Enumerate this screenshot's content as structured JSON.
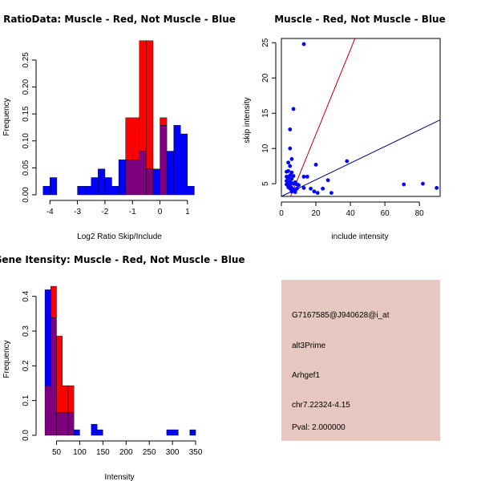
{
  "colors": {
    "red": "#ff0000",
    "blue": "#0000ff",
    "overlap": "#7f007f",
    "info_bg": "#e6c8c0",
    "pval": "#b00000",
    "red_line": "#c00000",
    "blue_line": "#000080"
  },
  "chart_data": [
    {
      "type": "bar",
      "title": "RatioData: Muscle - Red, Not Muscle - Blue",
      "xlabel": "Log2 Ratio Skip/Include",
      "ylabel": "Frequency",
      "xlim": [
        -4.3,
        1.5
      ],
      "ylim": [
        0,
        0.29
      ],
      "xticks": [
        -4,
        -3,
        -2,
        -1,
        0,
        1
      ],
      "xtick_labels": [
        "-4",
        "-3",
        "-2",
        "-1",
        "0",
        "1"
      ],
      "yticks": [
        0.0,
        0.05,
        0.1,
        0.15,
        0.2,
        0.25
      ],
      "ytick_labels": [
        "0.00",
        "0.05",
        "0.10",
        "0.15",
        "0.20",
        "0.25"
      ],
      "bin_width": 0.25,
      "series": [
        {
          "name": "Not Muscle",
          "color": "blue",
          "bins": [
            {
              "x0": -4.25,
              "v": 0.016
            },
            {
              "x0": -4.0,
              "v": 0.032
            },
            {
              "x0": -3.0,
              "v": 0.016
            },
            {
              "x0": -2.75,
              "v": 0.016
            },
            {
              "x0": -2.5,
              "v": 0.032
            },
            {
              "x0": -2.25,
              "v": 0.048
            },
            {
              "x0": -2.0,
              "v": 0.032
            },
            {
              "x0": -1.75,
              "v": 0.016
            },
            {
              "x0": -1.5,
              "v": 0.065
            },
            {
              "x0": -1.25,
              "v": 0.065
            },
            {
              "x0": -1.0,
              "v": 0.065
            },
            {
              "x0": -0.75,
              "v": 0.081
            },
            {
              "x0": -0.5,
              "v": 0.048
            },
            {
              "x0": -0.25,
              "v": 0.048
            },
            {
              "x0": 0.0,
              "v": 0.129
            },
            {
              "x0": 0.25,
              "v": 0.081
            },
            {
              "x0": 0.5,
              "v": 0.129
            },
            {
              "x0": 0.75,
              "v": 0.113
            },
            {
              "x0": 1.0,
              "v": 0.016
            }
          ]
        },
        {
          "name": "Muscle",
          "color": "red",
          "bins": [
            {
              "x0": -1.25,
              "v": 0.143
            },
            {
              "x0": -1.0,
              "v": 0.143
            },
            {
              "x0": -0.75,
              "v": 0.286
            },
            {
              "x0": -0.5,
              "v": 0.286
            },
            {
              "x0": 0.0,
              "v": 0.143
            }
          ]
        }
      ]
    },
    {
      "type": "scatter",
      "title": "Muscle - Red, Not Muscle - Blue",
      "xlabel": "include intensity",
      "ylabel": "skip intensity",
      "xlim": [
        0,
        92
      ],
      "ylim": [
        3.2,
        25.6
      ],
      "xticks": [
        0,
        20,
        40,
        60,
        80
      ],
      "xtick_labels": [
        "0",
        "20",
        "40",
        "60",
        "80"
      ],
      "yticks": [
        5,
        10,
        15,
        20,
        25
      ],
      "ytick_labels": [
        "5",
        "10",
        "15",
        "20",
        "25"
      ],
      "lines": [
        {
          "color": "red_line",
          "intercept": 0,
          "slope": 0.6
        },
        {
          "color": "blue_line",
          "intercept": 3.2,
          "slope": 0.118
        }
      ],
      "points": [
        {
          "x": 13,
          "y": 24.8
        },
        {
          "x": 7,
          "y": 15.6
        },
        {
          "x": 5,
          "y": 12.7
        },
        {
          "x": 5,
          "y": 10
        },
        {
          "x": 4,
          "y": 8
        },
        {
          "x": 6,
          "y": 8.5
        },
        {
          "x": 5,
          "y": 7.5
        },
        {
          "x": 38,
          "y": 8.2
        },
        {
          "x": 20,
          "y": 7.7
        },
        {
          "x": 3,
          "y": 6.7
        },
        {
          "x": 4,
          "y": 6.8
        },
        {
          "x": 6,
          "y": 6.6
        },
        {
          "x": 5,
          "y": 6.2
        },
        {
          "x": 3,
          "y": 6
        },
        {
          "x": 7,
          "y": 6.1
        },
        {
          "x": 4,
          "y": 5.8
        },
        {
          "x": 6,
          "y": 5.7
        },
        {
          "x": 13,
          "y": 6
        },
        {
          "x": 15,
          "y": 6
        },
        {
          "x": 3,
          "y": 5.4
        },
        {
          "x": 5,
          "y": 5.3
        },
        {
          "x": 6,
          "y": 5.1
        },
        {
          "x": 4,
          "y": 5
        },
        {
          "x": 3,
          "y": 4.9
        },
        {
          "x": 5,
          "y": 4.8
        },
        {
          "x": 7,
          "y": 5
        },
        {
          "x": 8,
          "y": 5.2
        },
        {
          "x": 9,
          "y": 4.9
        },
        {
          "x": 10,
          "y": 4.8
        },
        {
          "x": 27,
          "y": 5.5
        },
        {
          "x": 4,
          "y": 4.5
        },
        {
          "x": 5,
          "y": 4.3
        },
        {
          "x": 6,
          "y": 4.4
        },
        {
          "x": 7,
          "y": 4.2
        },
        {
          "x": 8,
          "y": 4.1
        },
        {
          "x": 9,
          "y": 4.3
        },
        {
          "x": 13,
          "y": 4.4
        },
        {
          "x": 17,
          "y": 4.3
        },
        {
          "x": 24,
          "y": 4.3
        },
        {
          "x": 6,
          "y": 3.9
        },
        {
          "x": 8,
          "y": 3.8
        },
        {
          "x": 19,
          "y": 3.9
        },
        {
          "x": 21,
          "y": 3.7
        },
        {
          "x": 29,
          "y": 3.7
        },
        {
          "x": 71,
          "y": 4.9
        },
        {
          "x": 82,
          "y": 5
        },
        {
          "x": 90,
          "y": 4.4
        }
      ]
    },
    {
      "type": "bar",
      "title": "Gene Itensity: Muscle - Red, Not Muscle - Blue",
      "xlabel": "Intensity",
      "ylabel": "Frequency",
      "xlim": [
        18,
        362
      ],
      "ylim": [
        0,
        0.45
      ],
      "xticks": [
        50,
        100,
        150,
        200,
        250,
        300,
        350
      ],
      "xtick_labels": [
        "50",
        "100",
        "150",
        "200",
        "250",
        "300",
        "350"
      ],
      "yticks": [
        0.0,
        0.1,
        0.2,
        0.3,
        0.4
      ],
      "ytick_labels": [
        "0.0",
        "0.1",
        "0.2",
        "0.3",
        "0.4"
      ],
      "bin_width": 12.5,
      "series": [
        {
          "name": "Not Muscle",
          "color": "blue",
          "bins": [
            {
              "x0": 25,
              "v": 0.419
            },
            {
              "x0": 37.5,
              "v": 0.339
            },
            {
              "x0": 50,
              "v": 0.065
            },
            {
              "x0": 62.5,
              "v": 0.065
            },
            {
              "x0": 75,
              "v": 0.065
            },
            {
              "x0": 87.5,
              "v": 0.016
            },
            {
              "x0": 125,
              "v": 0.032
            },
            {
              "x0": 137.5,
              "v": 0.016
            },
            {
              "x0": 287.5,
              "v": 0.016
            },
            {
              "x0": 300,
              "v": 0.016
            },
            {
              "x0": 337.5,
              "v": 0.016
            }
          ]
        },
        {
          "name": "Muscle",
          "color": "red",
          "bins": [
            {
              "x0": 25,
              "v": 0.143
            },
            {
              "x0": 37.5,
              "v": 0.429
            },
            {
              "x0": 50,
              "v": 0.286
            },
            {
              "x0": 62.5,
              "v": 0.143
            },
            {
              "x0": 75,
              "v": 0.143
            }
          ]
        }
      ]
    }
  ],
  "info_panel": {
    "probe_id": "G7167585@J940628@i_at",
    "event_type": "alt3Prime",
    "gene": "Arhgef1",
    "location": "chr7.22324-4.15",
    "pval": "Pval: 2.000000"
  }
}
